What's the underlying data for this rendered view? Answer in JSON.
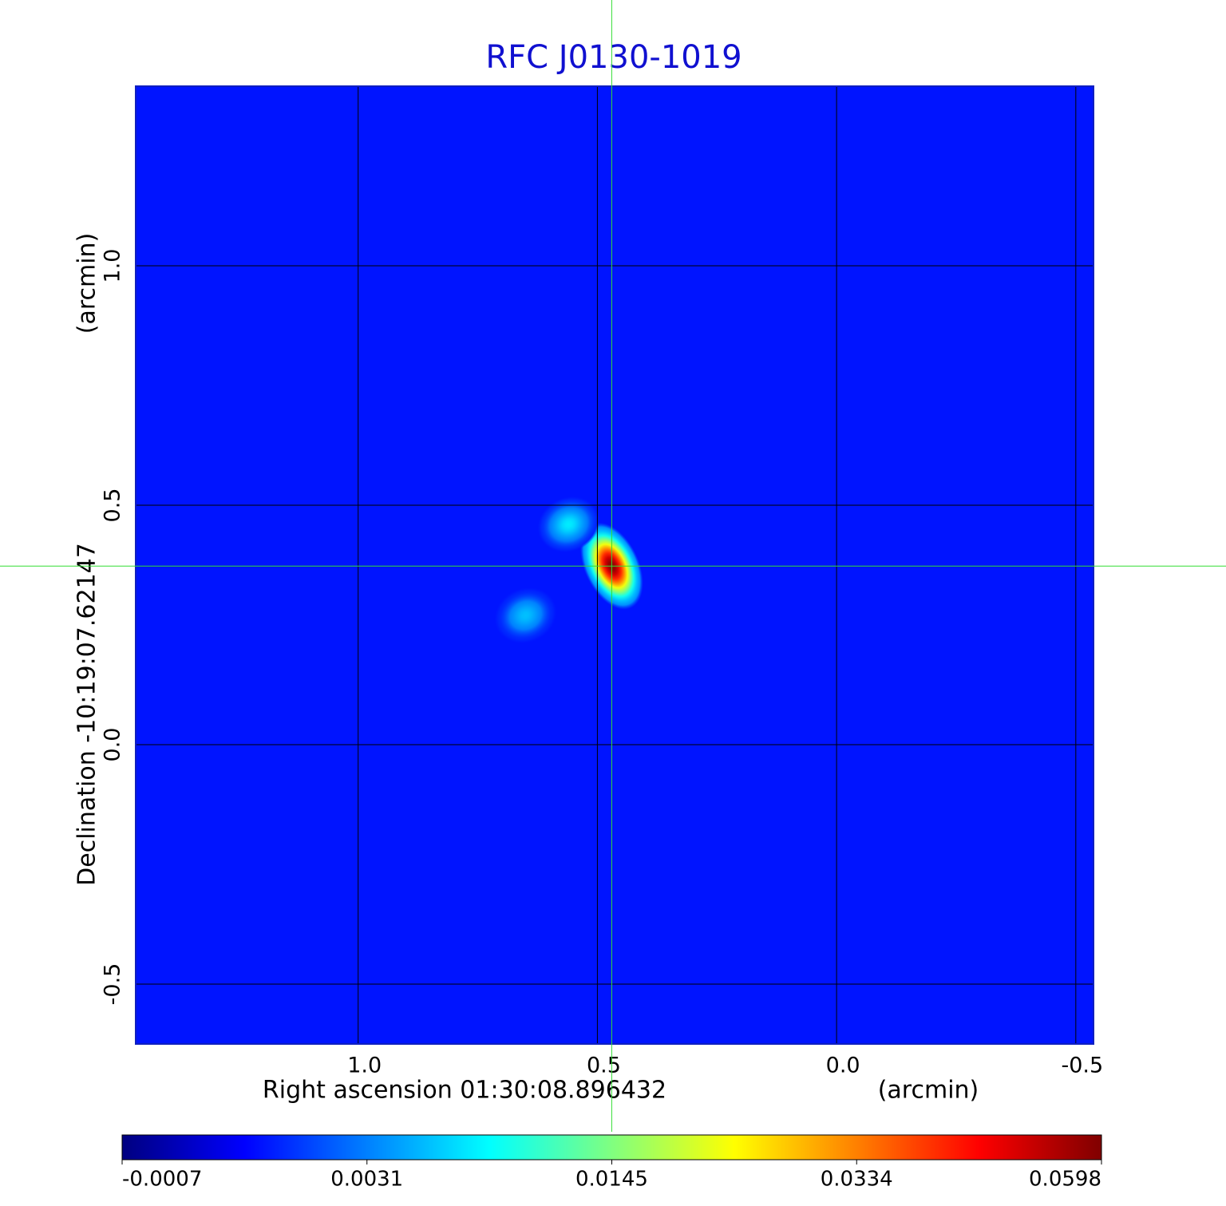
{
  "chart_data": {
    "type": "image",
    "title": "RFC J0130-1019",
    "xlabel": "Right ascension  01:30:08.896432",
    "xunit": "(arcmin)",
    "ylabel": "Declination  -10:19:07.62147",
    "yunit": "(arcmin)",
    "xlim": [
      1.465,
      -0.537
    ],
    "ylim": [
      -0.625,
      1.375
    ],
    "xticks": [
      {
        "value": 1,
        "label": "1.0"
      },
      0.5,
      {
        "value": 0,
        "label": "0.0"
      },
      -0.5
    ],
    "yticks": [
      -0.5,
      {
        "value": 0,
        "label": "0.0"
      },
      0.5,
      {
        "value": 1,
        "label": "1.0"
      }
    ],
    "grid": true,
    "crosshair": {
      "x": 0.47,
      "y": 0.373,
      "color": "#33dd33"
    },
    "background": 0.0015,
    "sources": {
      "x": [
        0.47,
        0.56,
        0.65
      ],
      "y": [
        0.373,
        0.46,
        0.27
      ],
      "values": [
        0.0598,
        0.008,
        0.006
      ]
    },
    "colormap": "jet",
    "clim": [
      -0.0007,
      0.0598
    ],
    "cticks": [
      -0.0007,
      0.0031,
      0.0145,
      0.0334,
      0.0598
    ]
  }
}
